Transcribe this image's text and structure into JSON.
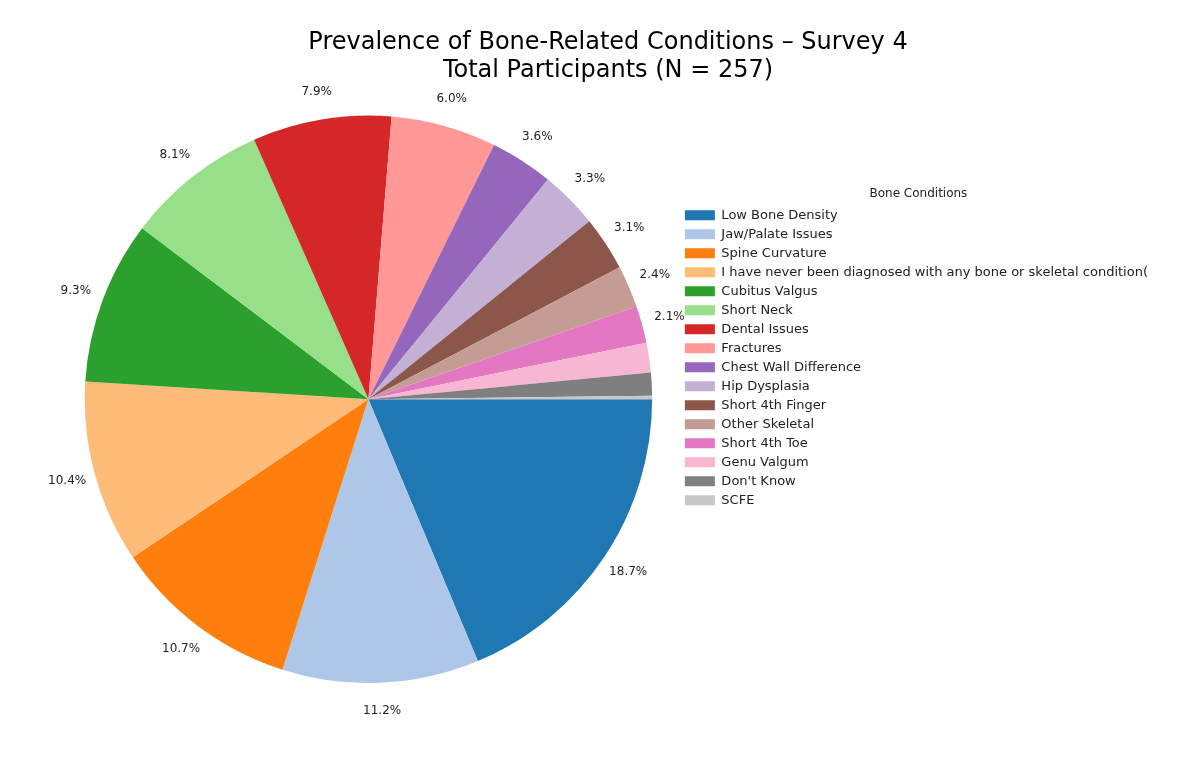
{
  "chart_data": {
    "type": "pie",
    "title": "Prevalence of Bone-Related Conditions – Survey 4",
    "subtitle": "Total Participants (N = 257)",
    "legend_title": "Bone Conditions",
    "legend": "right",
    "categories": [
      "Low Bone Density",
      "Jaw/Palate Issues",
      "Spine Curvature",
      "I have never been diagnosed with any bone or skeletal condition(",
      "Cubitus Valgus",
      "Short Neck",
      "Dental Issues",
      "Fractures",
      "Chest Wall Difference",
      "Hip Dysplasia",
      "Short 4th Finger",
      "Other Skeletal",
      "Short 4th Toe",
      "Genu Valgum",
      "Don't Know",
      "SCFE"
    ],
    "values": [
      18.7,
      11.2,
      10.7,
      10.4,
      9.3,
      8.1,
      7.9,
      6.0,
      3.6,
      3.3,
      3.1,
      2.4,
      2.1,
      1.7,
      1.3,
      0.2
    ],
    "value_labels": [
      "18.7%",
      "11.2%",
      "10.7%",
      "10.4%",
      "9.3%",
      "8.1%",
      "7.9%",
      "6.0%",
      "3.6%",
      "3.3%",
      "3.1%",
      "2.4%",
      "2.1%",
      null,
      null,
      null
    ],
    "colors": [
      "#1f77b4",
      "#aec7e8",
      "#ff7f0e",
      "#ffbb78",
      "#2ca02c",
      "#98df8a",
      "#d62728",
      "#ff9896",
      "#9467bd",
      "#c5b0d5",
      "#8c564b",
      "#c49c94",
      "#e377c2",
      "#f7b6d2",
      "#7f7f7f",
      "#c7c7c7"
    ]
  }
}
